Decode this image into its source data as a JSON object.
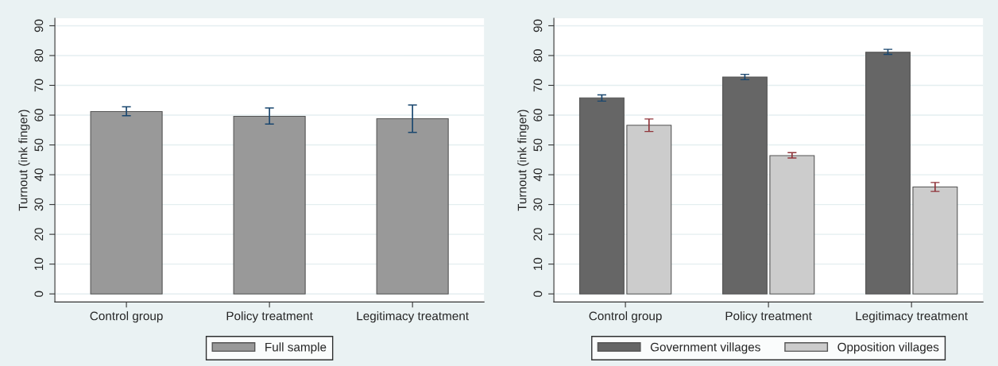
{
  "chart_data": [
    {
      "type": "bar",
      "ylabel": "Turnout (ink finger)",
      "categories": [
        "Control group",
        "Policy treatment",
        "Legitimacy treatment"
      ],
      "series": [
        {
          "name": "Full sample",
          "color": "#999999",
          "values": [
            61.2,
            59.6,
            58.8
          ],
          "errors": [
            [
              59.8,
              62.8
            ],
            [
              57.0,
              62.4
            ],
            [
              54.2,
              63.4
            ]
          ]
        }
      ],
      "ylim": [
        -2.7,
        92.5
      ],
      "yticks": [
        0,
        10,
        20,
        30,
        40,
        50,
        60,
        70,
        80,
        90
      ],
      "grid": "y",
      "legend": "bottom"
    },
    {
      "type": "bar",
      "ylabel": "Turnout (ink finger)",
      "categories": [
        "Control group",
        "Policy treatment",
        "Legitimacy treatment"
      ],
      "series": [
        {
          "name": "Government villages",
          "color": "#666666",
          "values": [
            65.8,
            72.8,
            81.1
          ],
          "errors": [
            [
              64.7,
              66.8
            ],
            [
              71.9,
              73.7
            ],
            [
              80.4,
              82.1
            ]
          ]
        },
        {
          "name": "Opposition villages",
          "color": "#cccccc",
          "values": [
            56.6,
            46.4,
            35.9
          ],
          "errors": [
            [
              54.5,
              58.7
            ],
            [
              45.6,
              47.4
            ],
            [
              34.4,
              37.4
            ]
          ]
        }
      ],
      "ylim": [
        -2.7,
        92.5
      ],
      "yticks": [
        0,
        10,
        20,
        30,
        40,
        50,
        60,
        70,
        80,
        90
      ],
      "grid": "y",
      "legend": "bottom"
    }
  ]
}
